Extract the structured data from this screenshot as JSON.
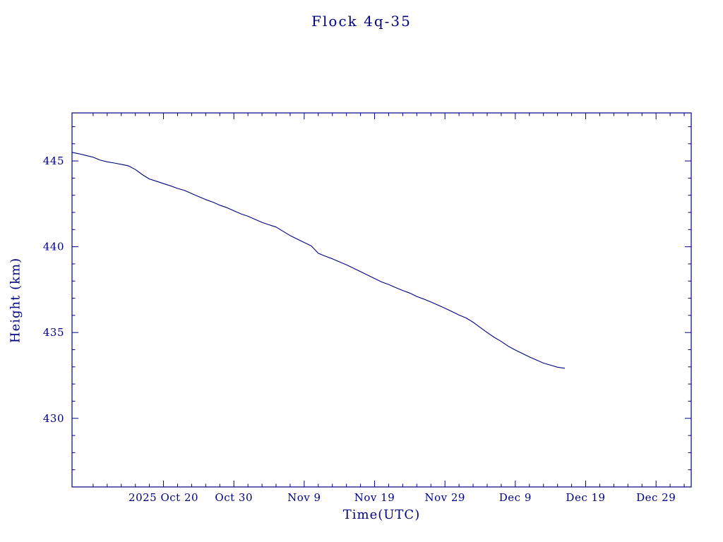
{
  "title": "Flock 4q-35",
  "colors": {
    "accent": "#000080",
    "background": "#ffffff"
  },
  "chart_data": {
    "type": "line",
    "title": "Flock 4q-35",
    "xlabel": "Time(UTC)",
    "ylabel": "Height (km)",
    "grid": false,
    "legend": "none",
    "line_color": "#000080",
    "xlim": [
      0,
      88
    ],
    "ylim": [
      426.0,
      447.8
    ],
    "x_minor_step": 2,
    "y_minor_step": 1,
    "x_ticks": [
      {
        "pos": 13,
        "label": "2025 Oct 20"
      },
      {
        "pos": 23,
        "label": "Oct 30"
      },
      {
        "pos": 33,
        "label": "Nov 9"
      },
      {
        "pos": 43,
        "label": "Nov 19"
      },
      {
        "pos": 53,
        "label": "Nov 29"
      },
      {
        "pos": 63,
        "label": "Dec 9"
      },
      {
        "pos": 73,
        "label": "Dec 19"
      },
      {
        "pos": 83,
        "label": "Dec 29"
      }
    ],
    "y_ticks": [
      {
        "pos": 430,
        "label": "430"
      },
      {
        "pos": 435,
        "label": "435"
      },
      {
        "pos": 440,
        "label": "440"
      },
      {
        "pos": 445,
        "label": "445"
      }
    ],
    "series": [
      {
        "name": "Height",
        "points": [
          [
            0,
            445.5
          ],
          [
            1,
            445.42
          ],
          [
            2,
            445.32
          ],
          [
            3,
            445.22
          ],
          [
            4,
            445.05
          ],
          [
            5,
            444.95
          ],
          [
            6,
            444.88
          ],
          [
            7,
            444.8
          ],
          [
            8,
            444.72
          ],
          [
            9,
            444.5
          ],
          [
            10,
            444.2
          ],
          [
            11,
            443.95
          ],
          [
            12,
            443.82
          ],
          [
            13,
            443.68
          ],
          [
            14,
            443.55
          ],
          [
            15,
            443.4
          ],
          [
            16,
            443.28
          ],
          [
            17,
            443.1
          ],
          [
            18,
            442.92
          ],
          [
            19,
            442.75
          ],
          [
            20,
            442.6
          ],
          [
            21,
            442.42
          ],
          [
            22,
            442.28
          ],
          [
            23,
            442.1
          ],
          [
            24,
            441.92
          ],
          [
            25,
            441.78
          ],
          [
            26,
            441.6
          ],
          [
            27,
            441.42
          ],
          [
            28,
            441.28
          ],
          [
            29,
            441.15
          ],
          [
            30,
            440.9
          ],
          [
            31,
            440.65
          ],
          [
            32,
            440.45
          ],
          [
            33,
            440.25
          ],
          [
            34,
            440.05
          ],
          [
            35,
            439.62
          ],
          [
            36,
            439.45
          ],
          [
            37,
            439.3
          ],
          [
            38,
            439.12
          ],
          [
            39,
            438.95
          ],
          [
            40,
            438.75
          ],
          [
            41,
            438.55
          ],
          [
            42,
            438.35
          ],
          [
            43,
            438.15
          ],
          [
            44,
            437.95
          ],
          [
            45,
            437.8
          ],
          [
            46,
            437.62
          ],
          [
            47,
            437.45
          ],
          [
            48,
            437.3
          ],
          [
            49,
            437.1
          ],
          [
            50,
            436.95
          ],
          [
            51,
            436.78
          ],
          [
            52,
            436.6
          ],
          [
            53,
            436.42
          ],
          [
            54,
            436.22
          ],
          [
            55,
            436.02
          ],
          [
            56,
            435.85
          ],
          [
            57,
            435.6
          ],
          [
            58,
            435.3
          ],
          [
            59,
            435.0
          ],
          [
            60,
            434.72
          ],
          [
            61,
            434.48
          ],
          [
            62,
            434.2
          ],
          [
            63,
            433.98
          ],
          [
            64,
            433.78
          ],
          [
            65,
            433.58
          ],
          [
            66,
            433.4
          ],
          [
            67,
            433.22
          ],
          [
            68,
            433.1
          ],
          [
            69,
            432.98
          ],
          [
            70,
            432.92
          ]
        ]
      }
    ]
  }
}
